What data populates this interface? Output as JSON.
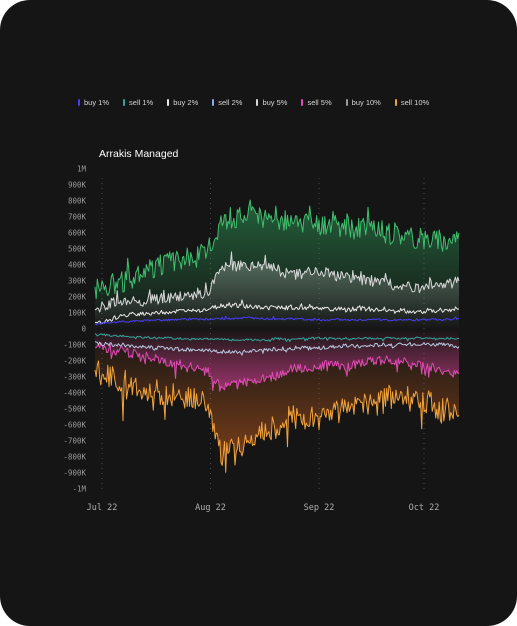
{
  "chart_data": {
    "type": "area",
    "title": "Arrakis Managed",
    "xlabel": "",
    "ylabel": "",
    "x_ticks": [
      "Jul 22",
      "Aug 22",
      "Sep 22",
      "Oct 22"
    ],
    "y_ticks": [
      "1M",
      "900K",
      "800K",
      "700K",
      "600K",
      "500K",
      "400K",
      "300K",
      "200K",
      "100K",
      "0",
      "-100K",
      "-200K",
      "-300K",
      "-400K",
      "-500K",
      "-600K",
      "-700K",
      "-800K",
      "-900K",
      "-1M"
    ],
    "ylim": [
      -1000000,
      1000000
    ],
    "grid": true,
    "legend_position": "top",
    "x_dates": [
      "2022-06-29",
      "2022-07-03",
      "2022-07-07",
      "2022-07-11",
      "2022-07-15",
      "2022-07-19",
      "2022-07-23",
      "2022-07-27",
      "2022-07-31",
      "2022-08-04",
      "2022-08-08",
      "2022-08-12",
      "2022-08-16",
      "2022-08-20",
      "2022-08-24",
      "2022-08-28",
      "2022-09-01",
      "2022-09-05",
      "2022-09-09",
      "2022-09-13",
      "2022-09-17",
      "2022-09-21",
      "2022-09-25",
      "2022-09-29",
      "2022-10-03",
      "2022-10-07",
      "2022-10-11"
    ],
    "series": [
      {
        "name": "buy 10%",
        "color": "#3fbf6e",
        "values": [
          250000,
          280000,
          300000,
          330000,
          380000,
          410000,
          430000,
          450000,
          470000,
          680000,
          700000,
          720000,
          680000,
          700000,
          650000,
          660000,
          640000,
          650000,
          640000,
          620000,
          630000,
          590000,
          600000,
          560000,
          570000,
          550000,
          600000
        ]
      },
      {
        "name": "buy 5%",
        "color": "#d8d8d8",
        "values": [
          130000,
          150000,
          160000,
          170000,
          180000,
          190000,
          200000,
          210000,
          215000,
          380000,
          390000,
          400000,
          390000,
          370000,
          340000,
          350000,
          360000,
          340000,
          320000,
          310000,
          300000,
          280000,
          270000,
          260000,
          270000,
          280000,
          300000
        ]
      },
      {
        "name": "buy 2%",
        "color": "#e8e8e8",
        "values": [
          30000,
          60000,
          80000,
          95000,
          100000,
          105000,
          110000,
          115000,
          120000,
          145000,
          150000,
          140000,
          130000,
          140000,
          130000,
          135000,
          130000,
          125000,
          120000,
          130000,
          120000,
          110000,
          115000,
          110000,
          115000,
          120000,
          125000
        ]
      },
      {
        "name": "buy 1%",
        "color": "#4a3df5",
        "values": [
          30000,
          40000,
          45000,
          50000,
          55000,
          55000,
          60000,
          62000,
          60000,
          65000,
          65000,
          70000,
          65000,
          60000,
          65000,
          60000,
          55000,
          60000,
          58000,
          55000,
          60000,
          55000,
          60000,
          55000,
          60000,
          58000,
          65000
        ]
      },
      {
        "name": "sell 1%",
        "color": "#33a39b",
        "values": [
          -30000,
          -40000,
          -45000,
          -50000,
          -55000,
          -55000,
          -60000,
          -62000,
          -60000,
          -65000,
          -70000,
          -65000,
          -70000,
          -60000,
          -65000,
          -60000,
          -55000,
          -60000,
          -58000,
          -55000,
          -60000,
          -55000,
          -60000,
          -55000,
          -60000,
          -58000,
          -60000
        ]
      },
      {
        "name": "sell 2%",
        "color": "#b8c8e0",
        "values": [
          -90000,
          -95000,
          -100000,
          -110000,
          -115000,
          -120000,
          -125000,
          -130000,
          -135000,
          -140000,
          -145000,
          -140000,
          -130000,
          -125000,
          -120000,
          -115000,
          -120000,
          -110000,
          -105000,
          -110000,
          -100000,
          -95000,
          -100000,
          -90000,
          -95000,
          -100000,
          -110000
        ]
      },
      {
        "name": "sell 5%",
        "color": "#e04ab6",
        "values": [
          -100000,
          -120000,
          -140000,
          -160000,
          -180000,
          -200000,
          -220000,
          -240000,
          -260000,
          -370000,
          -350000,
          -330000,
          -310000,
          -290000,
          -250000,
          -240000,
          -230000,
          -220000,
          -240000,
          -210000,
          -200000,
          -190000,
          -200000,
          -220000,
          -240000,
          -260000,
          -280000
        ]
      },
      {
        "name": "sell 10%",
        "color": "#f2a23a",
        "values": [
          -250000,
          -300000,
          -330000,
          -360000,
          -380000,
          -400000,
          -420000,
          -440000,
          -460000,
          -780000,
          -760000,
          -700000,
          -650000,
          -600000,
          -550000,
          -560000,
          -540000,
          -520000,
          -500000,
          -460000,
          -450000,
          -420000,
          -430000,
          -440000,
          -470000,
          -500000,
          -540000
        ]
      }
    ]
  }
}
